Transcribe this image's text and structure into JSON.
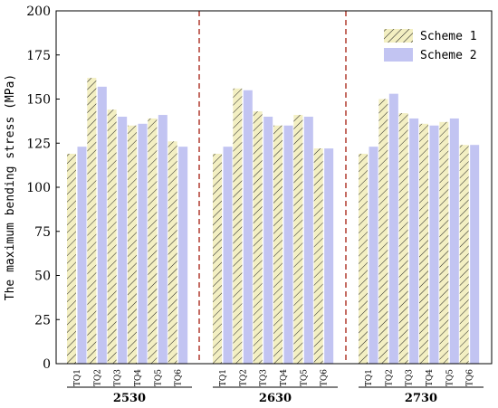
{
  "chart_data": {
    "type": "bar",
    "ylabel": "The maximum bending stress (MPa)",
    "ylim": [
      0,
      200
    ],
    "yticks": [
      0,
      25,
      50,
      75,
      100,
      125,
      150,
      175,
      200
    ],
    "grid": false,
    "legend_position": "top-right",
    "groups": [
      {
        "name": "2530",
        "categories": [
          "TQ1",
          "TQ2",
          "TQ3",
          "TQ4",
          "TQ5",
          "TQ6"
        ]
      },
      {
        "name": "2630",
        "categories": [
          "TQ1",
          "TQ2",
          "TQ3",
          "TQ4",
          "TQ5",
          "TQ6"
        ]
      },
      {
        "name": "2730",
        "categories": [
          "TQ1",
          "TQ2",
          "TQ3",
          "TQ4",
          "TQ5",
          "TQ6"
        ]
      }
    ],
    "series": [
      {
        "name": "Scheme 1",
        "pattern": "hatched",
        "color": "#f3efc2",
        "values": [
          [
            119,
            162,
            144,
            135,
            139,
            126
          ],
          [
            119,
            156,
            143,
            135,
            141,
            122
          ],
          [
            119,
            150,
            142,
            136,
            137,
            124
          ]
        ]
      },
      {
        "name": "Scheme 2",
        "pattern": "solid",
        "color": "#c2c4f2",
        "values": [
          [
            123,
            157,
            140,
            136,
            141,
            123
          ],
          [
            123,
            155,
            140,
            135,
            140,
            122
          ],
          [
            123,
            153,
            139,
            135,
            139,
            124
          ]
        ]
      }
    ],
    "separator_color": "#b03a2e"
  }
}
